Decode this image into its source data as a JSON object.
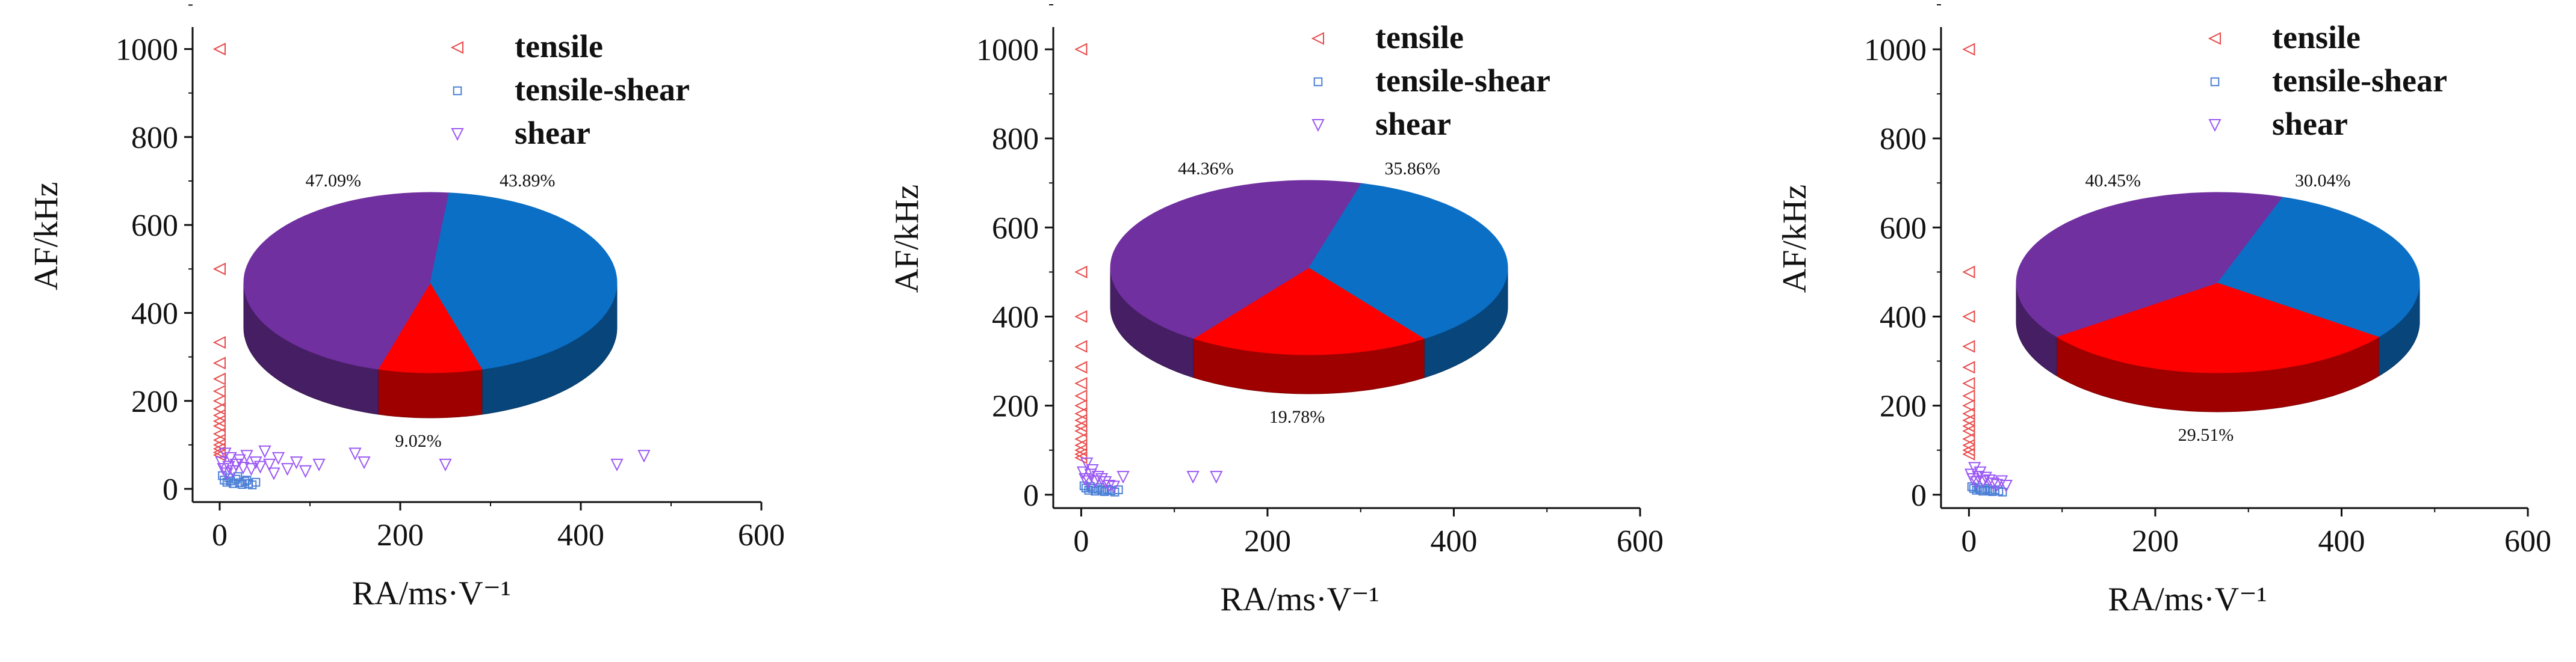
{
  "colors": {
    "tensile": "#e84a4a",
    "tensile_shear": "#4a7fd6",
    "shear": "#9b59f5",
    "pie_shear": "#7030a0",
    "pie_tensile_shear": "#0b6fc6",
    "pie_tensile": "#ff0000"
  },
  "chart_data": [
    {
      "type": "scatter",
      "title": "",
      "xlabel": "RA/ms·V⁻¹",
      "ylabel": "AF/kHz",
      "xlim": [
        -30,
        600
      ],
      "ylim": [
        -30,
        1050
      ],
      "xticks": [
        "0",
        "200",
        "400",
        "600"
      ],
      "yticks": [
        "0",
        "200",
        "400",
        "600",
        "800",
        "1000"
      ],
      "legend": [
        "tensile",
        "tensile-shear",
        "shear"
      ],
      "series": [
        {
          "name": "tensile",
          "marker": "triangle-left",
          "points": [
            [
              0,
              1000
            ],
            [
              0,
              500
            ],
            [
              0,
              333
            ],
            [
              0,
              286
            ],
            [
              0,
              250
            ],
            [
              0,
              222
            ],
            [
              0,
              200
            ],
            [
              0,
              182
            ],
            [
              0,
              167
            ],
            [
              0,
              154
            ],
            [
              0,
              143
            ],
            [
              0,
              125
            ],
            [
              0,
              111
            ],
            [
              0,
              100
            ],
            [
              0,
              91
            ],
            [
              0,
              83
            ],
            [
              0,
              77
            ]
          ]
        },
        {
          "name": "tensile-shear",
          "marker": "square",
          "points": [
            [
              5,
              20
            ],
            [
              8,
              15
            ],
            [
              12,
              18
            ],
            [
              15,
              12
            ],
            [
              18,
              22
            ],
            [
              22,
              14
            ],
            [
              25,
              10
            ],
            [
              28,
              17
            ],
            [
              32,
              12
            ],
            [
              36,
              9
            ],
            [
              40,
              15
            ],
            [
              3,
              30
            ],
            [
              10,
              25
            ],
            [
              20,
              28
            ],
            [
              30,
              20
            ]
          ]
        },
        {
          "name": "shear",
          "marker": "triangle-down",
          "points": [
            [
              2,
              60
            ],
            [
              4,
              45
            ],
            [
              6,
              80
            ],
            [
              8,
              35
            ],
            [
              10,
              50
            ],
            [
              12,
              70
            ],
            [
              15,
              40
            ],
            [
              18,
              55
            ],
            [
              22,
              65
            ],
            [
              26,
              48
            ],
            [
              30,
              75
            ],
            [
              35,
              45
            ],
            [
              40,
              60
            ],
            [
              45,
              50
            ],
            [
              50,
              85
            ],
            [
              55,
              55
            ],
            [
              60,
              35
            ],
            [
              65,
              70
            ],
            [
              75,
              45
            ],
            [
              85,
              60
            ],
            [
              95,
              40
            ],
            [
              110,
              55
            ],
            [
              150,
              80
            ],
            [
              160,
              60
            ],
            [
              250,
              55
            ],
            [
              440,
              55
            ],
            [
              470,
              75
            ]
          ]
        }
      ],
      "pie": {
        "type": "pie",
        "slices": [
          {
            "name": "shear",
            "value": 47.09,
            "label": "47.09%"
          },
          {
            "name": "tensile-shear",
            "value": 43.89,
            "label": "43.89%"
          },
          {
            "name": "tensile",
            "value": 9.02,
            "label": "9.02%"
          }
        ]
      }
    },
    {
      "type": "scatter",
      "title": "",
      "xlabel": "RA/ms·V⁻¹",
      "ylabel": "AF/kHz",
      "xlim": [
        -30,
        600
      ],
      "ylim": [
        -30,
        1050
      ],
      "xticks": [
        "0",
        "200",
        "400",
        "600"
      ],
      "yticks": [
        "0",
        "200",
        "400",
        "600",
        "800",
        "1000"
      ],
      "legend": [
        "tensile",
        "tensile-shear",
        "shear"
      ],
      "series": [
        {
          "name": "tensile",
          "marker": "triangle-left",
          "points": [
            [
              0,
              1000
            ],
            [
              0,
              500
            ],
            [
              0,
              400
            ],
            [
              0,
              333
            ],
            [
              0,
              286
            ],
            [
              0,
              250
            ],
            [
              0,
              222
            ],
            [
              0,
              200
            ],
            [
              0,
              182
            ],
            [
              0,
              167
            ],
            [
              0,
              154
            ],
            [
              0,
              143
            ],
            [
              0,
              125
            ],
            [
              0,
              111
            ],
            [
              0,
              100
            ],
            [
              0,
              91
            ],
            [
              0,
              83
            ]
          ]
        },
        {
          "name": "tensile-shear",
          "marker": "square",
          "points": [
            [
              5,
              15
            ],
            [
              8,
              10
            ],
            [
              12,
              14
            ],
            [
              15,
              8
            ],
            [
              18,
              12
            ],
            [
              22,
              10
            ],
            [
              25,
              7
            ],
            [
              28,
              12
            ],
            [
              32,
              9
            ],
            [
              36,
              6
            ],
            [
              40,
              11
            ],
            [
              3,
              20
            ],
            [
              10,
              18
            ],
            [
              20,
              16
            ],
            [
              30,
              10
            ]
          ]
        },
        {
          "name": "shear",
          "marker": "triangle-down",
          "points": [
            [
              2,
              50
            ],
            [
              4,
              35
            ],
            [
              6,
              70
            ],
            [
              8,
              30
            ],
            [
              10,
              45
            ],
            [
              12,
              55
            ],
            [
              15,
              30
            ],
            [
              18,
              40
            ],
            [
              22,
              35
            ],
            [
              26,
              28
            ],
            [
              30,
              20
            ],
            [
              35,
              18
            ],
            [
              45,
              40
            ],
            [
              120,
              40
            ],
            [
              145,
              40
            ]
          ]
        }
      ],
      "pie": {
        "type": "pie",
        "slices": [
          {
            "name": "shear",
            "value": 44.36,
            "label": "44.36%"
          },
          {
            "name": "tensile-shear",
            "value": 35.86,
            "label": "35.86%"
          },
          {
            "name": "tensile",
            "value": 19.78,
            "label": "19.78%"
          }
        ]
      }
    },
    {
      "type": "scatter",
      "title": "",
      "xlabel": "RA/ms·V⁻¹",
      "ylabel": "AF/kHz",
      "xlim": [
        -30,
        600
      ],
      "ylim": [
        -30,
        1050
      ],
      "xticks": [
        "0",
        "200",
        "400",
        "600"
      ],
      "yticks": [
        "0",
        "200",
        "400",
        "600",
        "800",
        "1000"
      ],
      "legend": [
        "tensile",
        "tensile-shear",
        "shear"
      ],
      "series": [
        {
          "name": "tensile",
          "marker": "triangle-left",
          "points": [
            [
              0,
              1000
            ],
            [
              0,
              500
            ],
            [
              0,
              400
            ],
            [
              0,
              333
            ],
            [
              0,
              286
            ],
            [
              0,
              250
            ],
            [
              0,
              222
            ],
            [
              0,
              200
            ],
            [
              0,
              182
            ],
            [
              0,
              167
            ],
            [
              0,
              154
            ],
            [
              0,
              143
            ],
            [
              0,
              125
            ],
            [
              0,
              111
            ],
            [
              0,
              100
            ],
            [
              0,
              91
            ]
          ]
        },
        {
          "name": "tensile-shear",
          "marker": "square",
          "points": [
            [
              5,
              14
            ],
            [
              8,
              10
            ],
            [
              12,
              12
            ],
            [
              15,
              8
            ],
            [
              18,
              11
            ],
            [
              22,
              9
            ],
            [
              25,
              7
            ],
            [
              28,
              11
            ],
            [
              32,
              8
            ],
            [
              36,
              6
            ],
            [
              3,
              18
            ],
            [
              10,
              16
            ],
            [
              20,
              14
            ]
          ]
        },
        {
          "name": "shear",
          "marker": "triangle-down",
          "points": [
            [
              2,
              45
            ],
            [
              4,
              35
            ],
            [
              6,
              60
            ],
            [
              8,
              28
            ],
            [
              10,
              40
            ],
            [
              12,
              50
            ],
            [
              15,
              30
            ],
            [
              18,
              38
            ],
            [
              22,
              32
            ],
            [
              26,
              25
            ],
            [
              30,
              22
            ],
            [
              35,
              30
            ],
            [
              40,
              20
            ]
          ]
        }
      ],
      "pie": {
        "type": "pie",
        "slices": [
          {
            "name": "shear",
            "value": 40.45,
            "label": "40.45%"
          },
          {
            "name": "tensile-shear",
            "value": 30.04,
            "label": "30.04%"
          },
          {
            "name": "tensile",
            "value": 29.51,
            "label": "29.51%"
          }
        ]
      }
    }
  ]
}
